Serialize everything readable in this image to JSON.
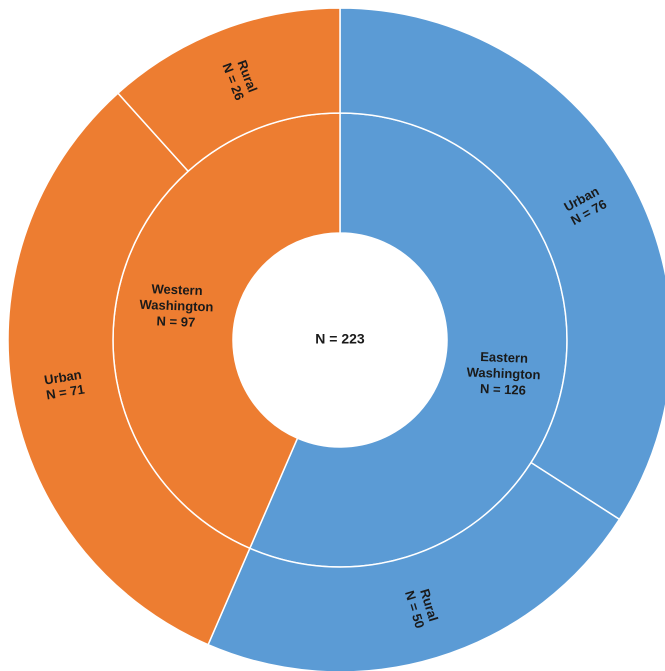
{
  "chart_data": {
    "type": "sunburst",
    "center_label": "N = 223",
    "total": 223,
    "inner_ring": [
      {
        "name": "Eastern Washington",
        "n_label": "N = 126",
        "value": 126,
        "color": "#5b9bd5"
      },
      {
        "name": "Western Washington",
        "n_label": "N = 97",
        "value": 97,
        "color": "#ed7d31"
      }
    ],
    "outer_ring": [
      {
        "parent": "Eastern Washington",
        "name": "Urban",
        "n_label": "N = 76",
        "value": 76,
        "color": "#5b9bd5"
      },
      {
        "parent": "Eastern Washington",
        "name": "Rural",
        "n_label": "N = 50",
        "value": 50,
        "color": "#5b9bd5"
      },
      {
        "parent": "Western Washington",
        "name": "Urban",
        "n_label": "N = 71",
        "value": 71,
        "color": "#ed7d31"
      },
      {
        "parent": "Western Washington",
        "name": "Rural",
        "n_label": "N = 26",
        "value": 26,
        "color": "#ed7d31"
      }
    ]
  }
}
